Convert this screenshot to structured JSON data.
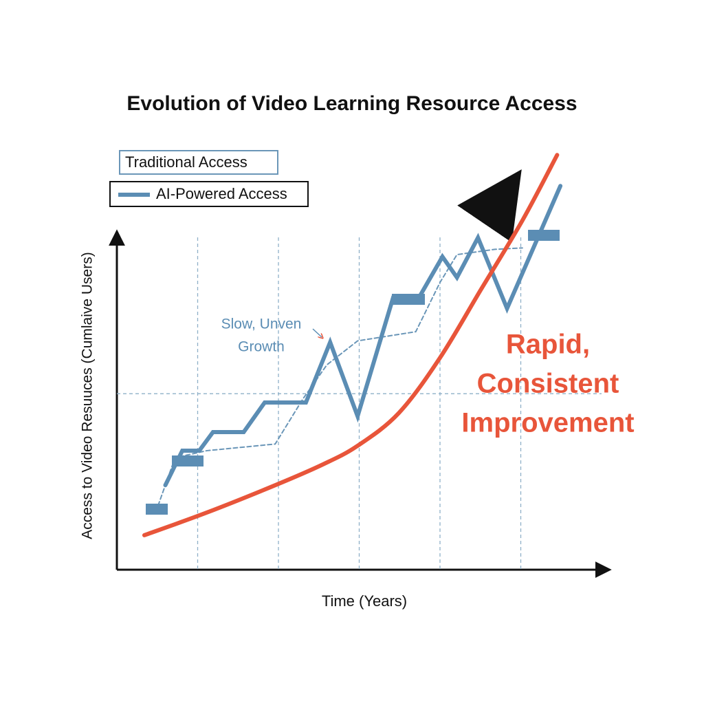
{
  "chart_data": {
    "type": "line",
    "title": "Evolution of Video Learning Resource Access",
    "x_label": "Time (Years)",
    "y_label": "Access to Video Resuuces (Cumlaive Users)",
    "xlim": [
      0,
      6
    ],
    "ylim": [
      0,
      12
    ],
    "xticks": [
      1,
      2,
      3,
      4,
      5
    ],
    "yticks": [
      5
    ],
    "grid": true,
    "series": [
      {
        "name": "Traditional Access",
        "color": "#6a96b8",
        "style": "dashed",
        "x": [
          0.51,
          0.72,
          1.11,
          1.96,
          2.3,
          2.6,
          2.98,
          3.7,
          4.0,
          4.21,
          4.68,
          5.02
        ],
        "values": [
          1.82,
          3.18,
          3.38,
          3.57,
          4.84,
          5.82,
          6.5,
          6.76,
          8.16,
          8.95,
          9.1,
          9.14
        ]
      },
      {
        "name": "AI-Powered Access",
        "color": "#5b8db4",
        "style": "solid",
        "x": [
          0.6,
          0.81,
          1.02,
          1.19,
          1.57,
          1.83,
          2.34,
          2.64,
          2.98,
          3.42,
          3.74,
          4.03,
          4.21,
          4.47,
          4.83,
          5.49
        ],
        "values": [
          2.4,
          3.38,
          3.38,
          3.91,
          3.91,
          4.75,
          4.75,
          6.46,
          4.36,
          7.73,
          7.73,
          8.89,
          8.3,
          9.43,
          7.42,
          10.9
        ]
      },
      {
        "color": "#e8553a",
        "style": "curve",
        "x": [
          0.34,
          1.11,
          1.96,
          2.55,
          2.98,
          3.49,
          4.0,
          4.51,
          5.02,
          5.45
        ],
        "values": [
          0.98,
          1.62,
          2.4,
          2.99,
          3.52,
          4.45,
          6.02,
          7.97,
          9.92,
          11.78
        ]
      }
    ],
    "annotations": [
      {
        "lines": [
          "Slow, Unven",
          "Growth"
        ],
        "color": "#5b8db4"
      },
      {
        "lines": [
          "Rapid,",
          "Consistent",
          "Improvement"
        ],
        "color": "#e8553a"
      }
    ]
  }
}
